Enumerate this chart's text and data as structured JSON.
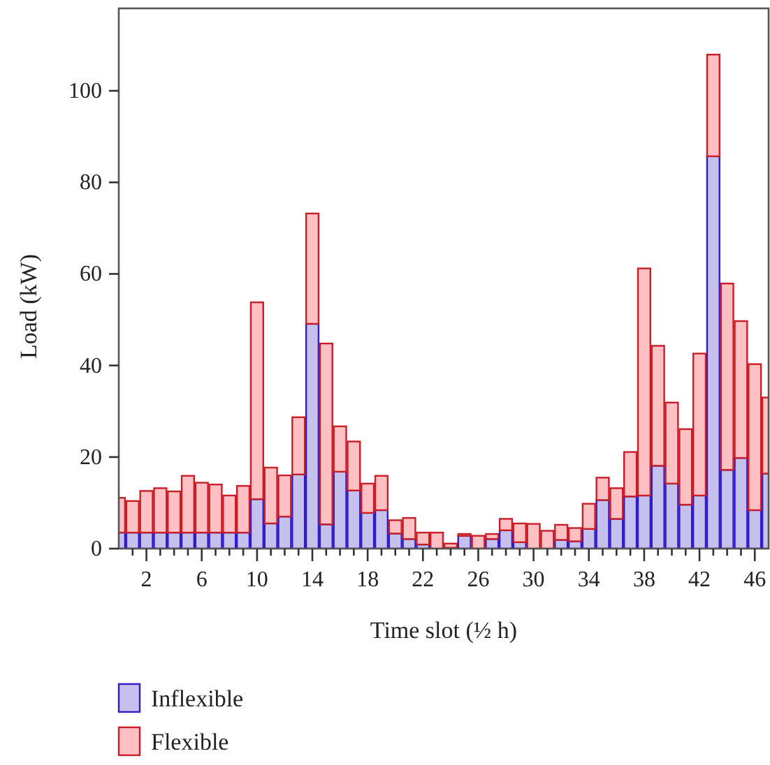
{
  "chart_data": {
    "type": "bar",
    "stacked": true,
    "xlabel": "Time slot (½ h)",
    "ylabel": "Load (kW)",
    "x": [
      0,
      1,
      2,
      3,
      4,
      5,
      6,
      7,
      8,
      9,
      10,
      11,
      12,
      13,
      14,
      15,
      16,
      17,
      18,
      19,
      20,
      21,
      22,
      23,
      24,
      25,
      26,
      27,
      28,
      29,
      30,
      31,
      32,
      33,
      34,
      35,
      36,
      37,
      38,
      39,
      40,
      41,
      42,
      43,
      44,
      45,
      46,
      47
    ],
    "series": [
      {
        "name": "Inflexible",
        "color": "#c5c0ec",
        "values": [
          3.5,
          3.5,
          3.5,
          3.5,
          3.5,
          3.5,
          3.5,
          3.5,
          3.5,
          3.5,
          10.8,
          5.5,
          7.0,
          16.2,
          49.1,
          5.3,
          16.8,
          12.7,
          7.8,
          8.4,
          3.3,
          2.1,
          0.9,
          null,
          0.2,
          2.8,
          null,
          2.1,
          4.0,
          1.4,
          null,
          null,
          1.9,
          1.6,
          4.3,
          10.6,
          6.5,
          11.4,
          11.6,
          18.1,
          14.2,
          9.6,
          11.6,
          85.7,
          17.2,
          19.8,
          8.4,
          16.4
        ]
      },
      {
        "name": "Flexible",
        "color": "#ffc0c4",
        "values": [
          7.6,
          6.9,
          9.1,
          9.7,
          9.0,
          12.4,
          10.9,
          10.5,
          8.1,
          10.2,
          43.0,
          12.2,
          9.0,
          12.5,
          24.1,
          39.5,
          9.9,
          10.7,
          6.4,
          7.5,
          2.9,
          4.6,
          2.6,
          3.5,
          0.9,
          0.4,
          2.8,
          1.1,
          2.5,
          4.1,
          5.4,
          3.9,
          3.3,
          2.9,
          5.5,
          4.9,
          6.7,
          9.7,
          49.6,
          26.2,
          17.7,
          16.5,
          31.0,
          22.2,
          40.7,
          29.9,
          31.9,
          16.6
        ]
      }
    ],
    "xlim": [
      0,
      47
    ],
    "xticks": [
      {
        "value": 1,
        "label": null
      },
      2,
      {
        "value": 3,
        "label": null
      },
      {
        "value": 4,
        "label": null
      },
      {
        "value": 5,
        "label": null
      },
      6,
      {
        "value": 7,
        "label": null
      },
      {
        "value": 8,
        "label": null
      },
      {
        "value": 9,
        "label": null
      },
      10,
      {
        "value": 11,
        "label": null
      },
      {
        "value": 12,
        "label": null
      },
      {
        "value": 13,
        "label": null
      },
      14,
      {
        "value": 15,
        "label": null
      },
      {
        "value": 16,
        "label": null
      },
      {
        "value": 17,
        "label": null
      },
      18,
      {
        "value": 19,
        "label": null
      },
      {
        "value": 20,
        "label": null
      },
      {
        "value": 21,
        "label": null
      },
      22,
      {
        "value": 23,
        "label": null
      },
      {
        "value": 24,
        "label": null
      },
      {
        "value": 25,
        "label": null
      },
      26,
      {
        "value": 27,
        "label": null
      },
      {
        "value": 28,
        "label": null
      },
      {
        "value": 29,
        "label": null
      },
      30,
      {
        "value": 31,
        "label": null
      },
      {
        "value": 32,
        "label": null
      },
      {
        "value": 33,
        "label": null
      },
      34,
      {
        "value": 35,
        "label": null
      },
      {
        "value": 36,
        "label": null
      },
      {
        "value": 37,
        "label": null
      },
      38,
      {
        "value": 39,
        "label": null
      },
      {
        "value": 40,
        "label": null
      },
      {
        "value": 41,
        "label": null
      },
      42,
      {
        "value": 43,
        "label": null
      },
      {
        "value": 44,
        "label": null
      },
      {
        "value": 45,
        "label": null
      },
      46
    ],
    "ylim": [
      0,
      118
    ],
    "yticks": [
      0,
      20,
      40,
      60,
      80,
      100
    ],
    "grid": false,
    "legend": "bottom"
  }
}
